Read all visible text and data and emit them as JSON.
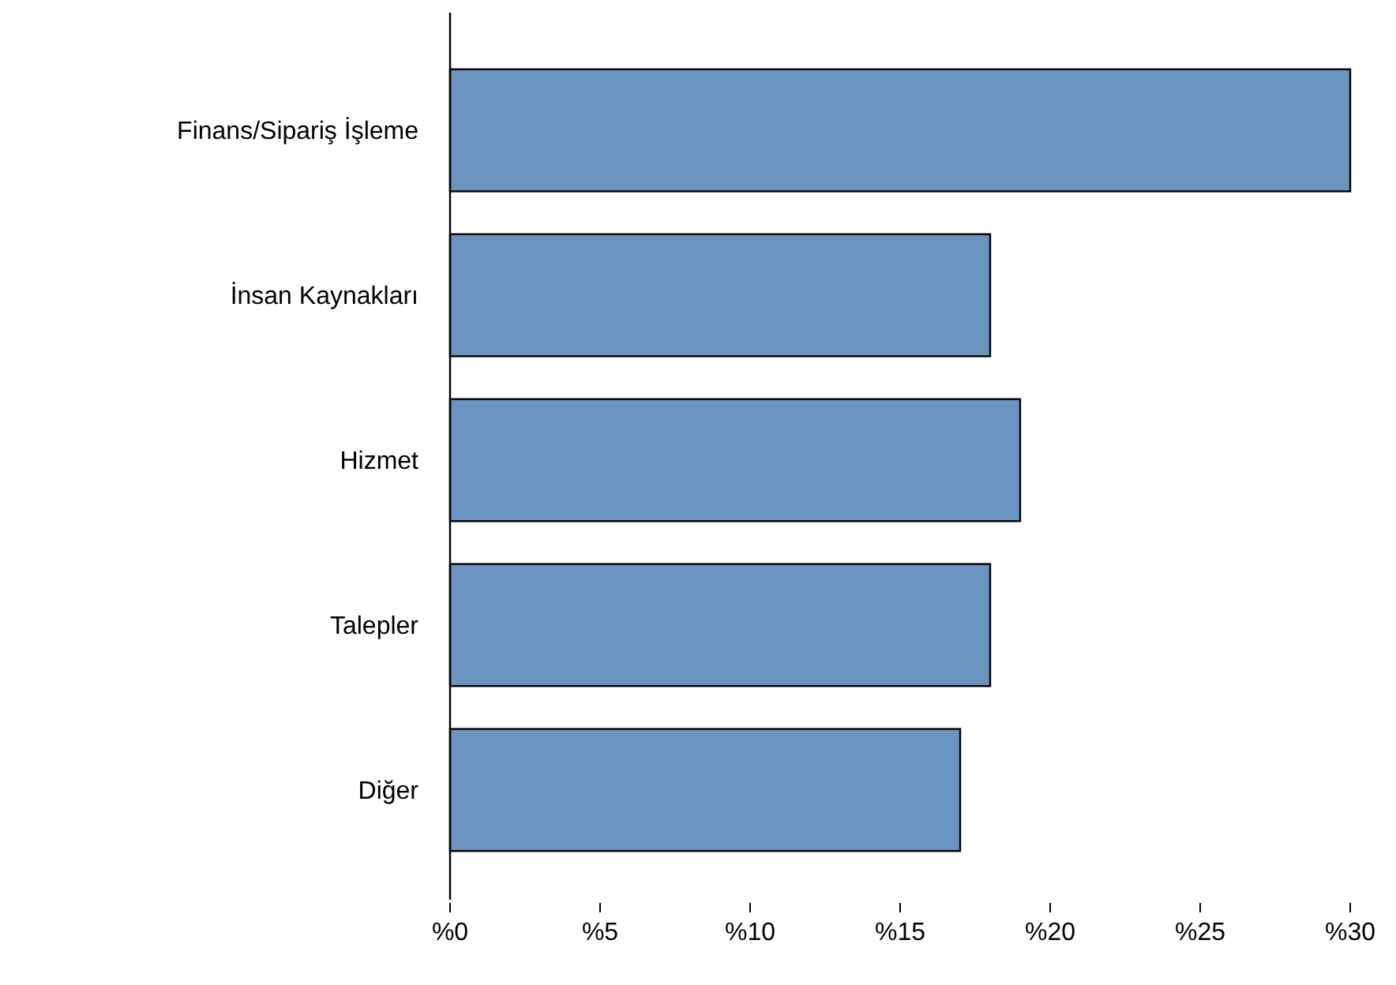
{
  "chart_data": {
    "type": "bar",
    "orientation": "horizontal",
    "categories": [
      "Finans/Sipariş İşleme",
      "İnsan Kaynakları",
      "Hizmet",
      "Talepler",
      "Diğer"
    ],
    "values": [
      30,
      18,
      19,
      18,
      17
    ],
    "color": "#6b93bf",
    "xlim": [
      0,
      30
    ],
    "xticks": [
      {
        "value": 0,
        "label": "%0"
      },
      {
        "value": 5,
        "label": "%5"
      },
      {
        "value": 10,
        "label": "%10"
      },
      {
        "value": 15,
        "label": "%15"
      },
      {
        "value": 20,
        "label": "%20"
      },
      {
        "value": 25,
        "label": "%25"
      },
      {
        "value": 30,
        "label": "%30"
      }
    ],
    "grid": false
  }
}
